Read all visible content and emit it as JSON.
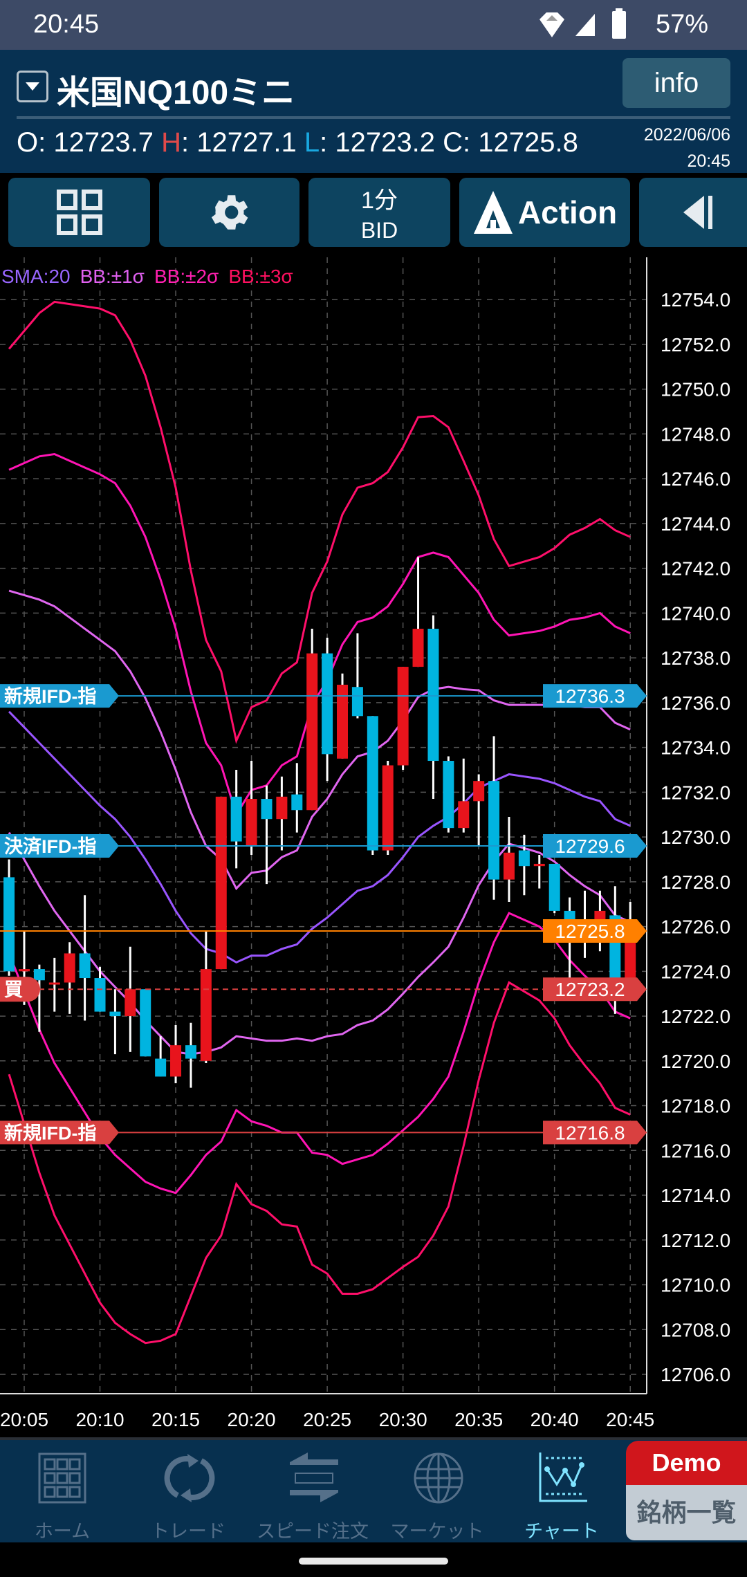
{
  "status_bar": {
    "time": "20:45",
    "battery": "57%",
    "icons": [
      "vpn-diamond-icon",
      "signal-icon",
      "battery-icon"
    ]
  },
  "header": {
    "title": "米国NQ100ミニ",
    "info_label": "info",
    "ohlc": {
      "o_label": "O",
      "o": "12723.7",
      "h_label": "H",
      "h": "12727.1",
      "l_label": "L",
      "l": "12723.2",
      "c_label": "C",
      "c": "12725.8"
    },
    "date": "2022/06/06",
    "time": "20:45"
  },
  "toolbar": {
    "grid_icon": "grid-icon",
    "settings_icon": "gear-icon",
    "interval": "1分",
    "price_type": "BID",
    "action_label": "Action",
    "collapse_icon": "collapse-left-icon"
  },
  "legend": {
    "sma": "SMA:20",
    "bb1": "BB:±1σ",
    "bb2": "BB:±2σ",
    "bb3": "BB:±3σ"
  },
  "colors": {
    "up": "#e8141c",
    "down": "#00b4e0",
    "sma": "#9955ff",
    "bb1": "#e066f0",
    "bb2": "#ff14b4",
    "bb3": "#ff0f6a",
    "order_blue": "#1a9ad0",
    "order_red": "#d94040",
    "current": "#ff8000"
  },
  "chart_data": {
    "type": "candlestick",
    "ylim": [
      12705.0,
      12755.0
    ],
    "yticks": [
      "12754.0",
      "12752.0",
      "12750.0",
      "12748.0",
      "12746.0",
      "12744.0",
      "12742.0",
      "12740.0",
      "12738.0",
      "12736.0",
      "12734.0",
      "12732.0",
      "12730.0",
      "12728.0",
      "12726.0",
      "12724.0",
      "12722.0",
      "12720.0",
      "12718.0",
      "12716.0",
      "12714.0",
      "12712.0",
      "12710.0",
      "12708.0",
      "12706.0"
    ],
    "xticks": [
      "20:05",
      "20:10",
      "20:15",
      "20:20",
      "20:25",
      "20:30",
      "20:35",
      "20:40",
      "20:45"
    ],
    "grid": true,
    "times": [
      "20:04",
      "20:05",
      "20:06",
      "20:07",
      "20:08",
      "20:09",
      "20:10",
      "20:11",
      "20:12",
      "20:13",
      "20:14",
      "20:15",
      "20:16",
      "20:17",
      "20:18",
      "20:19",
      "20:20",
      "20:21",
      "20:22",
      "20:23",
      "20:24",
      "20:25",
      "20:26",
      "20:27",
      "20:28",
      "20:29",
      "20:30",
      "20:31",
      "20:32",
      "20:33",
      "20:34",
      "20:35",
      "20:36",
      "20:37",
      "20:38",
      "20:39",
      "20:40",
      "20:41",
      "20:42",
      "20:43",
      "20:44",
      "20:45"
    ],
    "ohlc": [
      [
        12728.2,
        12729.0,
        12723.8,
        12724.0
      ],
      [
        12724.0,
        12725.8,
        12722.5,
        12724.1
      ],
      [
        12724.1,
        12724.3,
        12721.3,
        12723.6
      ],
      [
        12723.5,
        12724.6,
        12722.2,
        12723.5
      ],
      [
        12723.5,
        12725.3,
        12722.1,
        12724.8
      ],
      [
        12724.8,
        12727.4,
        12721.8,
        12723.7
      ],
      [
        12723.7,
        12724.2,
        12722.2,
        12722.2
      ],
      [
        12722.2,
        12723.2,
        12720.3,
        12722.0
      ],
      [
        12722.0,
        12725.1,
        12720.4,
        12723.2
      ],
      [
        12723.2,
        12723.2,
        12720.2,
        12720.2
      ],
      [
        12720.1,
        12721.1,
        12719.3,
        12719.3
      ],
      [
        12719.3,
        12721.6,
        12719.0,
        12720.7
      ],
      [
        12720.7,
        12721.7,
        12718.8,
        12720.1
      ],
      [
        12720.0,
        12725.8,
        12719.9,
        12724.1
      ],
      [
        12724.1,
        12731.8,
        12724.1,
        12731.8
      ],
      [
        12731.8,
        12733.0,
        12728.6,
        12729.8
      ],
      [
        12729.6,
        12733.4,
        12729.2,
        12731.7
      ],
      [
        12731.7,
        12732.3,
        12727.9,
        12730.8
      ],
      [
        12730.8,
        12732.7,
        12729.4,
        12731.8
      ],
      [
        12731.9,
        12733.3,
        12730.2,
        12731.2
      ],
      [
        12731.2,
        12739.3,
        12731.2,
        12738.2
      ],
      [
        12738.2,
        12738.9,
        12732.5,
        12733.7
      ],
      [
        12733.5,
        12737.3,
        12733.5,
        12736.8
      ],
      [
        12736.7,
        12739.1,
        12735.3,
        12735.4
      ],
      [
        12735.4,
        12735.4,
        12729.2,
        12729.4
      ],
      [
        12729.4,
        12733.4,
        12729.2,
        12733.2
      ],
      [
        12733.2,
        12737.6,
        12733.0,
        12737.6
      ],
      [
        12737.6,
        12742.5,
        12737.6,
        12739.3
      ],
      [
        12739.3,
        12739.9,
        12731.7,
        12733.4
      ],
      [
        12733.4,
        12733.6,
        12730.2,
        12730.4
      ],
      [
        12730.4,
        12733.5,
        12730.2,
        12731.6
      ],
      [
        12731.6,
        12732.8,
        12729.6,
        12732.5
      ],
      [
        12732.5,
        12734.5,
        12727.2,
        12728.1
      ],
      [
        12728.1,
        12730.9,
        12727.1,
        12729.3
      ],
      [
        12729.4,
        12730.1,
        12727.4,
        12728.7
      ],
      [
        12728.7,
        12729.2,
        12727.7,
        12728.8
      ],
      [
        12728.8,
        12728.8,
        12726.6,
        12726.7
      ],
      [
        12726.7,
        12727.3,
        12723.7,
        12725.9
      ],
      [
        12726.0,
        12727.6,
        12724.6,
        12725.3
      ],
      [
        12725.3,
        12727.6,
        12724.9,
        12726.7
      ],
      [
        12726.5,
        12727.8,
        12722.1,
        12723.3
      ],
      [
        12723.7,
        12727.1,
        12723.2,
        12725.8
      ]
    ],
    "sma20": [
      12735.6,
      12734.9,
      12734.2,
      12733.5,
      12732.8,
      12732.1,
      12731.4,
      12730.8,
      12730.0,
      12729.0,
      12727.9,
      12726.7,
      12725.7,
      12725.0,
      12724.8,
      12724.4,
      12724.7,
      12724.7,
      12725.0,
      12725.2,
      12725.9,
      12726.4,
      12727.0,
      12727.6,
      12727.8,
      12728.3,
      12729.1,
      12730.0,
      12730.5,
      12730.9,
      12731.5,
      12732.2,
      12732.5,
      12732.8,
      12732.7,
      12732.6,
      12732.4,
      12732.1,
      12731.8,
      12731.6,
      12730.8,
      12730.5
    ],
    "sigma": [
      5.4,
      5.9,
      6.4,
      6.8,
      7.0,
      7.2,
      7.4,
      7.5,
      7.4,
      7.2,
      6.8,
      6.3,
      5.4,
      4.6,
      4.2,
      3.3,
      3.7,
      3.8,
      4.1,
      4.2,
      5.0,
      5.3,
      5.8,
      6.0,
      6.0,
      6.0,
      6.1,
      6.25,
      6.1,
      5.8,
      5.1,
      4.35,
      3.6,
      3.1,
      3.2,
      3.3,
      3.5,
      3.8,
      4.0,
      4.2,
      4.3,
      4.3
    ],
    "order_lines": [
      {
        "label": "新規IFD-指",
        "price": "12736.3",
        "kind": "blue",
        "style": "solid"
      },
      {
        "label": "決済IFD-指",
        "price": "12729.6",
        "kind": "blue",
        "style": "solid"
      },
      {
        "label": "",
        "price": "12725.8",
        "kind": "current",
        "style": "solid"
      },
      {
        "label": "買",
        "price": "12723.2",
        "kind": "red",
        "style": "dashed"
      },
      {
        "label": "新規IFD-指",
        "price": "12716.8",
        "kind": "red",
        "style": "solid"
      }
    ]
  },
  "bottom_nav": {
    "items": [
      {
        "label": "ホーム",
        "icon": "home-grid-icon"
      },
      {
        "label": "トレード",
        "icon": "refresh-arrows-icon"
      },
      {
        "label": "スピード注文",
        "icon": "speed-arrows-icon"
      },
      {
        "label": "マーケット",
        "icon": "globe-icon"
      },
      {
        "label": "チャート",
        "icon": "chart-icon",
        "active": true
      }
    ],
    "demo_label": "Demo",
    "symbols_label": "銘柄一覧"
  }
}
